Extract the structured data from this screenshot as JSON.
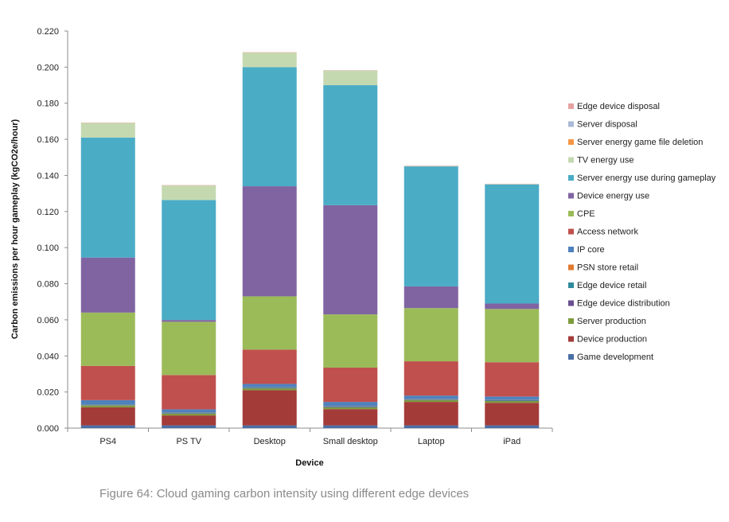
{
  "caption": "Figure 64: Cloud gaming carbon intensity using different edge devices",
  "chart_data": {
    "type": "bar",
    "stacked": true,
    "xlabel": "Device",
    "ylabel": "Carbon emissions per hour gameplay (kgCO2e/hour)",
    "ylim": [
      0,
      0.22
    ],
    "yticks": [
      "0.000",
      "0.020",
      "0.040",
      "0.060",
      "0.080",
      "0.100",
      "0.120",
      "0.140",
      "0.160",
      "0.180",
      "0.200",
      "0.220"
    ],
    "grid": false,
    "legend_position": "right",
    "categories": [
      "PS4",
      "PS TV",
      "Desktop",
      "Small desktop",
      "Laptop",
      "iPad"
    ],
    "series": [
      {
        "name": "Game development",
        "color": "#4a6fa5",
        "values": [
          0.0015,
          0.0015,
          0.0015,
          0.0015,
          0.0015,
          0.0015
        ]
      },
      {
        "name": "Device production",
        "color": "#a33b39",
        "values": [
          0.01,
          0.0055,
          0.0195,
          0.009,
          0.013,
          0.0125
        ]
      },
      {
        "name": "Server production",
        "color": "#7e9b3c",
        "values": [
          0.001,
          0.001,
          0.001,
          0.001,
          0.001,
          0.001
        ]
      },
      {
        "name": "Edge device distribution",
        "color": "#6a4f8f",
        "values": [
          0.0002,
          0.0002,
          0.0002,
          0.0002,
          0.0002,
          0.0002
        ]
      },
      {
        "name": "Edge device retail",
        "color": "#2f8a9c",
        "values": [
          0.0003,
          0.0003,
          0.0003,
          0.0003,
          0.0003,
          0.0003
        ]
      },
      {
        "name": "PSN store retail",
        "color": "#e07b30",
        "values": [
          0.0001,
          0.0001,
          0.0001,
          0.0001,
          0.0001,
          0.0001
        ]
      },
      {
        "name": "IP core",
        "color": "#4f81bd",
        "values": [
          0.0024,
          0.0018,
          0.0019,
          0.0024,
          0.0019,
          0.0019
        ]
      },
      {
        "name": "Access network",
        "color": "#c0504d",
        "values": [
          0.019,
          0.019,
          0.019,
          0.019,
          0.019,
          0.019
        ]
      },
      {
        "name": "CPE",
        "color": "#9bbb59",
        "values": [
          0.0295,
          0.0295,
          0.0295,
          0.0295,
          0.0295,
          0.0295
        ]
      },
      {
        "name": "Device energy use",
        "color": "#8064a2",
        "values": [
          0.0305,
          0.001,
          0.061,
          0.0605,
          0.012,
          0.003
        ]
      },
      {
        "name": "Server energy use during gameplay",
        "color": "#4bacc6",
        "values": [
          0.0665,
          0.0665,
          0.066,
          0.0665,
          0.0665,
          0.066
        ]
      },
      {
        "name": "TV energy use",
        "color": "#c5d9b0",
        "values": [
          0.008,
          0.008,
          0.008,
          0.008,
          0.0001,
          0.0001
        ]
      },
      {
        "name": "Server energy game file deletion",
        "color": "#f79646",
        "values": [
          0.0001,
          0.0001,
          0.0001,
          0.0001,
          0.0001,
          0.0001
        ]
      },
      {
        "name": "Server disposal",
        "color": "#a9b9d6",
        "values": [
          0.0001,
          0.0001,
          0.0001,
          0.0001,
          0.0001,
          0.0001
        ]
      },
      {
        "name": "Edge device disposal",
        "color": "#e6a2a0",
        "values": [
          0.0001,
          0.0001,
          0.0001,
          0.0001,
          0.0001,
          0.0001
        ]
      }
    ]
  }
}
